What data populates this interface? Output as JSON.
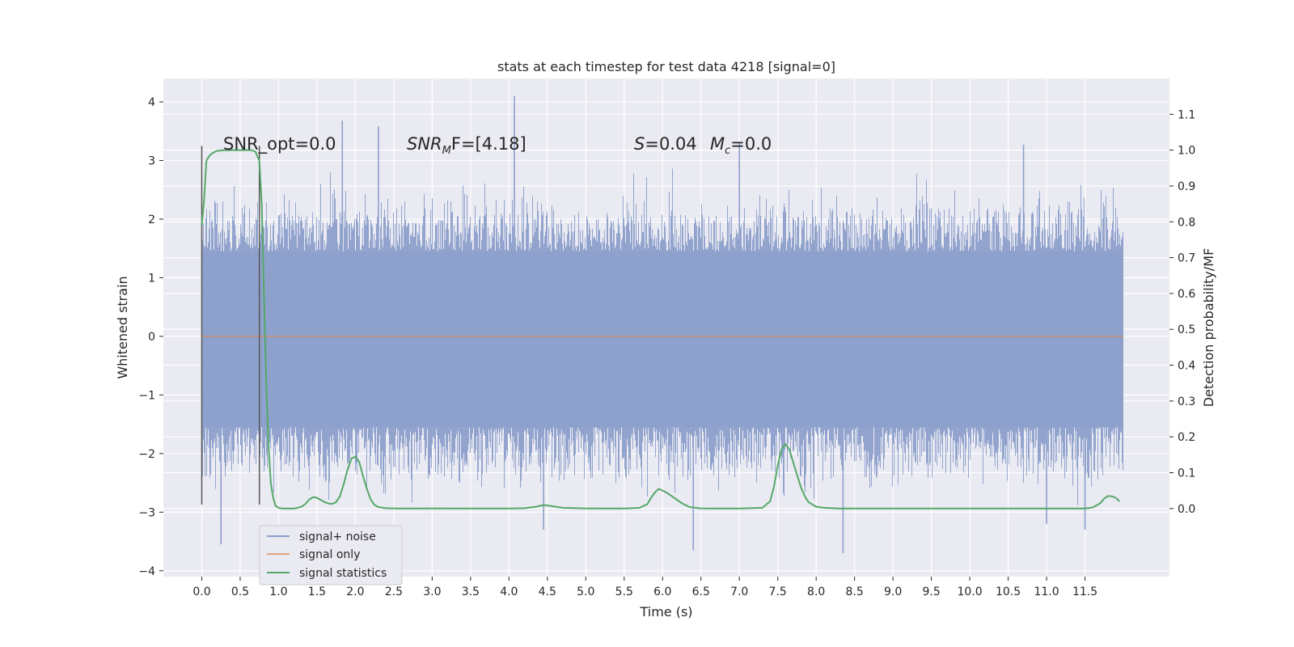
{
  "chart_data": {
    "type": "line",
    "title": "stats at each timestep for test data 4218 [signal=0]",
    "xlabel": "Time (s)",
    "ylabel": "Whitened strain",
    "y2label": "Detection probability/MF",
    "xlim": [
      -0.5,
      12.6
    ],
    "ylim": [
      -4.1,
      4.4
    ],
    "y2lim": [
      -0.19,
      1.2
    ],
    "xticks": [
      0.0,
      0.5,
      1.0,
      1.5,
      2.0,
      2.5,
      3.0,
      3.5,
      4.0,
      4.5,
      5.0,
      5.5,
      6.0,
      6.5,
      7.0,
      7.5,
      8.0,
      8.5,
      9.0,
      9.5,
      10.0,
      10.5,
      11.0,
      11.5
    ],
    "xtick_labels": [
      "0.0",
      "0.5",
      "1.0",
      "1.5",
      "2.0",
      "2.5",
      "3.0",
      "3.5",
      "4.0",
      "4.5",
      "5.0",
      "5.5",
      "6.0",
      "6.5",
      "7.0",
      "7.5",
      "8.0",
      "8.5",
      "9.0",
      "9.5",
      "10.0",
      "10.5",
      "11.0",
      "11.5"
    ],
    "yticks": [
      -4,
      -3,
      -2,
      -1,
      0,
      1,
      2,
      3,
      4
    ],
    "ytick_labels": [
      "−4",
      "−3",
      "−2",
      "−1",
      "0",
      "1",
      "2",
      "3",
      "4"
    ],
    "y2ticks": [
      0.0,
      0.1,
      0.2,
      0.3,
      0.4,
      0.5,
      0.6,
      0.7,
      0.8,
      0.9,
      1.0,
      1.1
    ],
    "y2tick_labels": [
      "0.0",
      "0.1",
      "0.2",
      "0.3",
      "0.4",
      "0.5",
      "0.6",
      "0.7",
      "0.8",
      "0.9",
      "1.0",
      "1.1"
    ],
    "grid": true,
    "legend_position": "lower-left",
    "legend": [
      "signal+ noise",
      "signal only",
      "signal statistics"
    ],
    "annotations": {
      "snr_opt": "SNR_opt=0.0",
      "snr_mf_sym": "SNR",
      "snr_mf_sub": "M",
      "snr_mf_rest": "F=[4.18]",
      "s_sym": "S",
      "s_rest": "=0.04",
      "mc_sym": "M",
      "mc_sub": "c",
      "mc_rest": "=0.0"
    },
    "vlines": [
      {
        "x": 0.0,
        "ymin": -2.87,
        "ymax": 3.25
      },
      {
        "x": 0.75,
        "ymin": -2.87,
        "ymax": 3.25
      }
    ],
    "series": [
      {
        "name": "signal+ noise",
        "kind": "noise-band",
        "color": "#8da0cb",
        "x_range": [
          0.0,
          12.0
        ],
        "core_range": [
          -1.55,
          1.45
        ],
        "typical_peak": [
          2.0,
          -2.2
        ],
        "extreme_points": [
          {
            "x": 0.25,
            "y": -3.55
          },
          {
            "x": 1.83,
            "y": 3.68
          },
          {
            "x": 2.3,
            "y": 3.58
          },
          {
            "x": 4.07,
            "y": 4.1
          },
          {
            "x": 4.45,
            "y": -3.3
          },
          {
            "x": 6.4,
            "y": -3.65
          },
          {
            "x": 7.0,
            "y": 3.3
          },
          {
            "x": 8.35,
            "y": -3.7
          },
          {
            "x": 10.7,
            "y": 3.27
          },
          {
            "x": 11.0,
            "y": -3.2
          },
          {
            "x": 11.5,
            "y": -3.3
          }
        ]
      },
      {
        "name": "signal only",
        "color": "#dd8452",
        "x": [
          0.0,
          12.0
        ],
        "y": [
          0.0,
          0.0
        ]
      },
      {
        "name": "signal statistics",
        "color": "#55a868",
        "axis": "right",
        "x": [
          0.0,
          0.03,
          0.06,
          0.1,
          0.15,
          0.2,
          0.3,
          0.4,
          0.5,
          0.6,
          0.65,
          0.7,
          0.75,
          0.78,
          0.81,
          0.84,
          0.87,
          0.9,
          0.93,
          0.96,
          1.0,
          1.05,
          1.1,
          1.2,
          1.3,
          1.35,
          1.4,
          1.45,
          1.5,
          1.55,
          1.6,
          1.65,
          1.7,
          1.75,
          1.8,
          1.85,
          1.9,
          1.95,
          2.0,
          2.05,
          2.1,
          2.15,
          2.2,
          2.25,
          2.3,
          2.4,
          2.6,
          3.0,
          3.5,
          4.0,
          4.2,
          4.35,
          4.45,
          4.55,
          4.7,
          5.0,
          5.5,
          5.7,
          5.8,
          5.85,
          5.9,
          5.95,
          6.05,
          6.15,
          6.25,
          6.35,
          6.5,
          7.0,
          7.3,
          7.4,
          7.45,
          7.5,
          7.55,
          7.6,
          7.65,
          7.7,
          7.75,
          7.8,
          7.85,
          7.9,
          8.0,
          8.1,
          8.3,
          9.0,
          10.0,
          11.0,
          11.5,
          11.6,
          11.7,
          11.75,
          11.8,
          11.85,
          11.9,
          11.95
        ],
        "y": [
          0.79,
          0.86,
          0.97,
          0.985,
          0.993,
          0.998,
          1.0,
          1.0,
          1.0,
          1.0,
          1.0,
          0.995,
          0.97,
          0.85,
          0.6,
          0.35,
          0.17,
          0.07,
          0.03,
          0.008,
          0.002,
          0.0,
          0.0,
          0.0,
          0.005,
          0.013,
          0.025,
          0.032,
          0.03,
          0.024,
          0.018,
          0.014,
          0.013,
          0.018,
          0.035,
          0.07,
          0.11,
          0.14,
          0.145,
          0.13,
          0.09,
          0.055,
          0.025,
          0.01,
          0.004,
          0.001,
          0.0,
          0.0005,
          0.0,
          0.0,
          0.001,
          0.005,
          0.01,
          0.007,
          0.002,
          0.0005,
          0.0,
          0.002,
          0.012,
          0.03,
          0.045,
          0.055,
          0.045,
          0.03,
          0.015,
          0.004,
          0.0005,
          0.0,
          0.002,
          0.02,
          0.06,
          0.12,
          0.165,
          0.18,
          0.165,
          0.13,
          0.095,
          0.06,
          0.035,
          0.018,
          0.005,
          0.002,
          0.0,
          0.0,
          0.0,
          0.0,
          0.0,
          0.003,
          0.015,
          0.028,
          0.035,
          0.034,
          0.03,
          0.02
        ]
      }
    ]
  }
}
